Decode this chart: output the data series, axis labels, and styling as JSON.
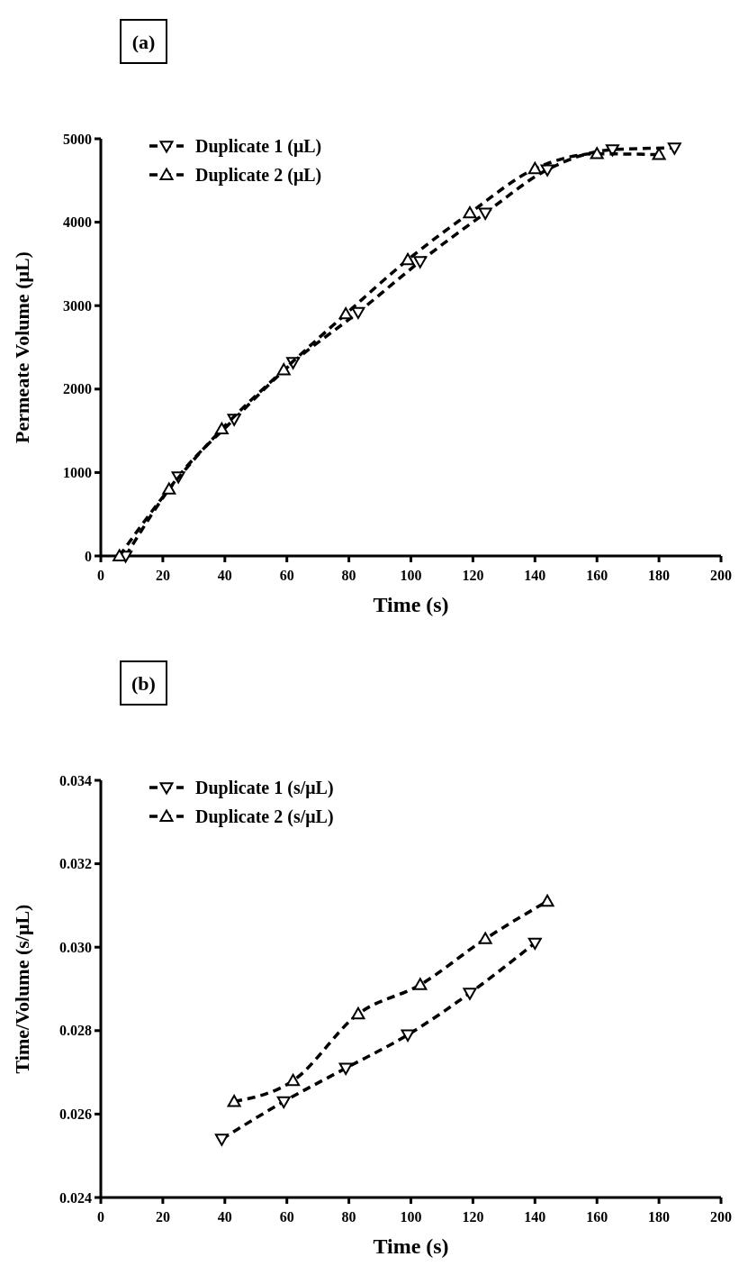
{
  "chart_data": [
    {
      "type": "line",
      "title": "(a)",
      "xlabel": "Time (s)",
      "ylabel": "Permeate Volume (μL)",
      "xlim": [
        0,
        200
      ],
      "xticks": [
        0,
        20,
        40,
        60,
        80,
        100,
        120,
        140,
        160,
        180,
        200
      ],
      "ylim": [
        0,
        5000
      ],
      "yticks": [
        0,
        1000,
        2000,
        3000,
        4000,
        5000
      ],
      "legend": "top left",
      "line_style": "dashed",
      "grid": false,
      "series": [
        {
          "name": "Duplicate 1 (μL)",
          "color": "#000000",
          "marker": "triangle-down",
          "x": [
            8,
            25,
            43,
            62,
            83,
            103,
            124,
            144,
            165,
            185
          ],
          "values": [
            0,
            950,
            1640,
            2320,
            2920,
            3530,
            4110,
            4630,
            4870,
            4890
          ]
        },
        {
          "name": "Duplicate 2 (μL)",
          "color": "#000000",
          "marker": "triangle",
          "x": [
            6,
            22,
            39,
            59,
            79,
            99,
            119,
            140,
            160,
            180
          ],
          "values": [
            0,
            800,
            1520,
            2230,
            2900,
            3550,
            4110,
            4640,
            4820,
            4810
          ]
        }
      ]
    },
    {
      "type": "line",
      "title": "(b)",
      "xlabel": "Time (s)",
      "ylabel": "Time/Volume (s/μL)",
      "xlim": [
        0,
        200
      ],
      "xticks": [
        0,
        20,
        40,
        60,
        80,
        100,
        120,
        140,
        160,
        180,
        200
      ],
      "ylim": [
        0.024,
        0.034
      ],
      "yticks": [
        {
          "value": 0.024,
          "label": "0.024"
        },
        {
          "value": 0.026,
          "label": "0.026"
        },
        {
          "value": 0.028,
          "label": "0.028"
        },
        {
          "value": 0.03,
          "label": "0.030"
        },
        {
          "value": 0.032,
          "label": "0.032"
        },
        {
          "value": 0.034,
          "label": "0.034"
        }
      ],
      "legend": "top left",
      "line_style": "dashed",
      "grid": false,
      "series": [
        {
          "name": "Duplicate 1 (s/μL)",
          "color": "#000000",
          "marker": "triangle-down",
          "x": [
            39,
            59,
            79,
            99,
            119,
            140
          ],
          "values": [
            0.0254,
            0.0263,
            0.0271,
            0.0279,
            0.0289,
            0.0301
          ]
        },
        {
          "name": "Duplicate 2 (s/μL)",
          "color": "#000000",
          "marker": "triangle",
          "x": [
            43,
            62,
            83,
            103,
            124,
            144
          ],
          "values": [
            0.0263,
            0.0268,
            0.0284,
            0.0291,
            0.0302,
            0.0311
          ]
        }
      ]
    }
  ]
}
